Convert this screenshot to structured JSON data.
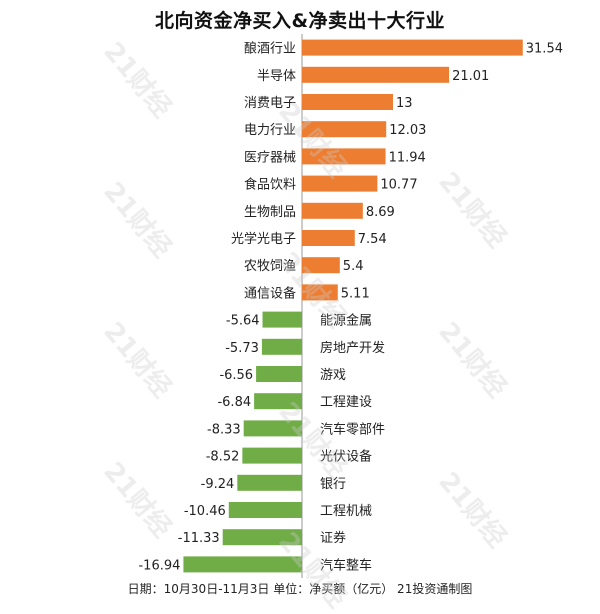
{
  "chart_data": {
    "type": "bar",
    "orientation": "horizontal",
    "title": "北向资金净买入&净卖出十大行业",
    "categories": [
      "酿酒行业",
      "半导体",
      "消费电子",
      "电力行业",
      "医疗器械",
      "食品饮料",
      "生物制品",
      "光学光电子",
      "农牧饲渔",
      "通信设备",
      "能源金属",
      "房地产开发",
      "游戏",
      "工程建设",
      "汽车零部件",
      "光伏设备",
      "银行",
      "工程机械",
      "证券",
      "汽车整车"
    ],
    "values": [
      31.54,
      21.01,
      13,
      12.03,
      11.94,
      10.77,
      8.69,
      7.54,
      5.4,
      5.11,
      -5.64,
      -5.73,
      -6.56,
      -6.84,
      -8.33,
      -8.52,
      -9.24,
      -10.46,
      -11.33,
      -16.94
    ],
    "value_labels": [
      "31.54",
      "21.01",
      "13",
      "12.03",
      "11.94",
      "10.77",
      "8.69",
      "7.54",
      "5.4",
      "5.11",
      "-5.64",
      "-5.73",
      "-6.56",
      "-6.84",
      "-8.33",
      "-8.52",
      "-9.24",
      "-10.46",
      "-11.33",
      "-16.94"
    ],
    "xlim": [
      -21,
      35
    ],
    "grid": false,
    "legend": "none"
  },
  "colors": {
    "positive": "#ED7D31",
    "negative": "#70AD47",
    "axis": "#999999",
    "text": "#222222"
  },
  "footer": "日期：10月30日-11月3日 单位：净买额（亿元） 21投资通制图",
  "watermark": "21财经"
}
